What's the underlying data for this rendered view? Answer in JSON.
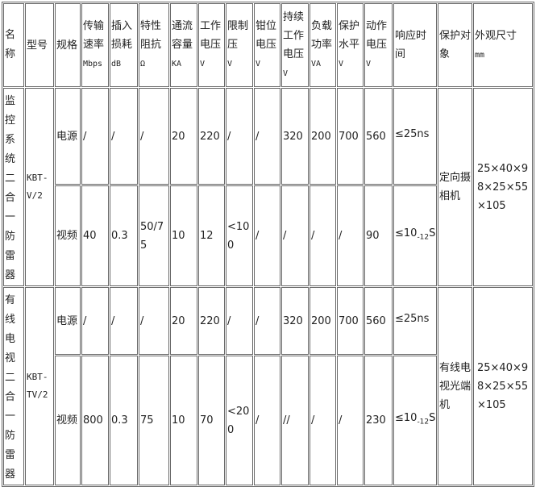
{
  "headers": [
    {
      "l1": "名称"
    },
    {
      "l1": "型号"
    },
    {
      "l1": "规格"
    },
    {
      "l1": "传输速率",
      "unit": "Mbps"
    },
    {
      "l1": "插入损耗",
      "unit": "dB"
    },
    {
      "l1": "特性阻抗",
      "unit": "Ω"
    },
    {
      "l1": "通流容量",
      "unit": "KA"
    },
    {
      "l1": "工作电压",
      "unit": "V"
    },
    {
      "l1": "限制压",
      "unit": "V"
    },
    {
      "l1": "钳位电压",
      "unit": "V"
    },
    {
      "l1": "持续工作电压",
      "unit": "V"
    },
    {
      "l1": "负载功率",
      "unit": "VA"
    },
    {
      "l1": "保护水平",
      "unit": "V"
    },
    {
      "l1": "动作电压",
      "unit": "V"
    },
    {
      "l1": "响应时间"
    },
    {
      "l1": "保护对象"
    },
    {
      "l1": "外观尺寸",
      "unit": "mm"
    }
  ],
  "groups": [
    {
      "name": "监控系统二合一防雷器",
      "model": "KBT-V/2",
      "target": "定向摄相机",
      "size": "25×40×98×25×55×105",
      "rows": [
        {
          "spec": "电源",
          "rate": "/",
          "loss": "/",
          "imp": "/",
          "flow": "20",
          "work": "220",
          "limit": "/",
          "clamp": "/",
          "cont": "320",
          "load": "200",
          "prot": "700",
          "act": "560",
          "resp_pre": "≤25ns",
          "resp_sub": "",
          "resp_post": ""
        },
        {
          "spec": "视频",
          "rate": "40",
          "loss": "0.3",
          "imp": "50/75",
          "flow": "10",
          "work": "12",
          "limit": "<100",
          "clamp": "/",
          "cont": "/",
          "load": "/",
          "prot": "/",
          "act": "90",
          "resp_pre": "≤10",
          "resp_sub": "-12",
          "resp_post": "S"
        }
      ]
    },
    {
      "name": "有线电视二合一防雷器",
      "model": "KBT-TV/2",
      "target": "有线电视光端机",
      "size": "25×40×98×25×55×105",
      "rows": [
        {
          "spec": "电源",
          "rate": "/",
          "loss": "/",
          "imp": "/",
          "flow": "20",
          "work": "220",
          "limit": "/",
          "clamp": "/",
          "cont": "320",
          "load": "200",
          "prot": "700",
          "act": "560",
          "resp_pre": "≤25ns",
          "resp_sub": "",
          "resp_post": ""
        },
        {
          "spec": "视频",
          "rate": "800",
          "loss": "0.3",
          "imp": "75",
          "flow": "10",
          "work": "70",
          "limit": "<200",
          "clamp": "/",
          "cont": "//",
          "load": "/",
          "prot": "/",
          "act": "230",
          "resp_pre": "≤10",
          "resp_sub": "-12",
          "resp_post": "S"
        }
      ]
    }
  ]
}
